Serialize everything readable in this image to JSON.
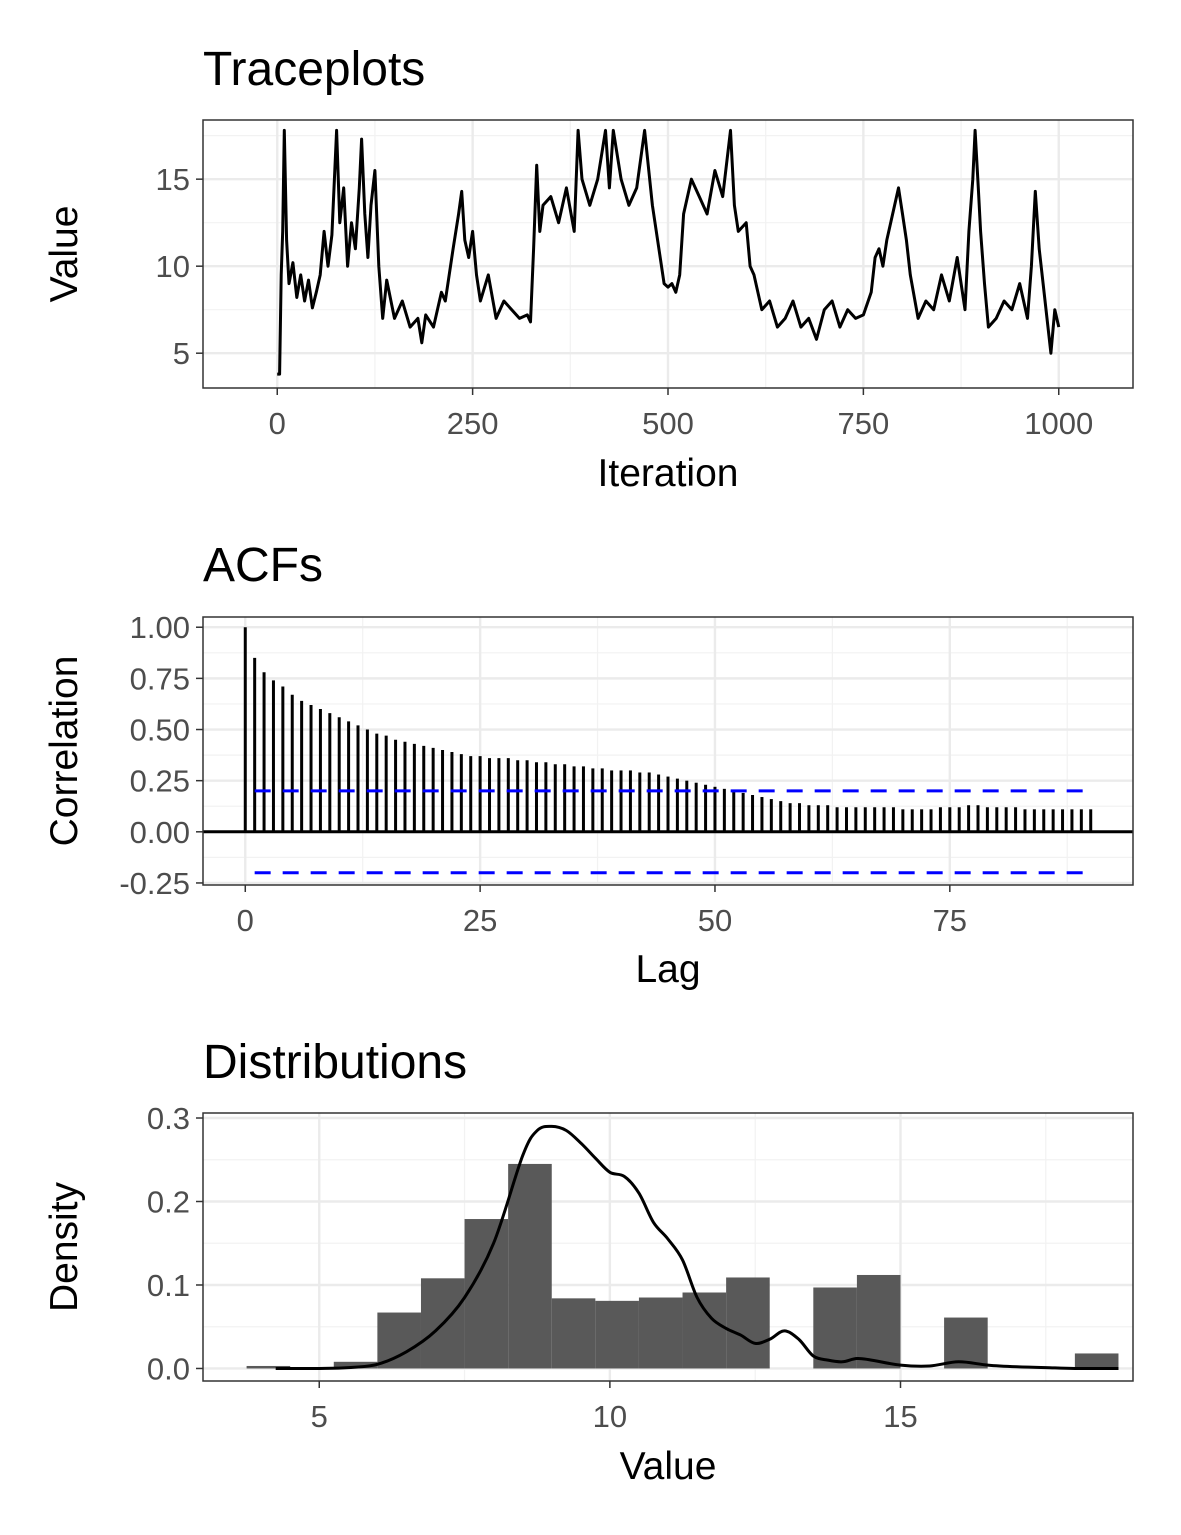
{
  "chart_data": [
    {
      "type": "line",
      "title": "Traceplots",
      "xlabel": "Iteration",
      "ylabel": "Value",
      "xlim": [
        -95,
        1095
      ],
      "ylim": [
        3.0,
        18.4
      ],
      "xticks": [
        0,
        250,
        500,
        750,
        1000
      ],
      "yticks": [
        5,
        10,
        15
      ],
      "grid": true,
      "line_color": "#000000",
      "anchors": [
        [
          0,
          3.8
        ],
        [
          3,
          3.8
        ],
        [
          5,
          9.5
        ],
        [
          7,
          12.0
        ],
        [
          9,
          17.8
        ],
        [
          12,
          11.5
        ],
        [
          15,
          9.0
        ],
        [
          20,
          10.2
        ],
        [
          25,
          8.2
        ],
        [
          30,
          9.5
        ],
        [
          35,
          8.0
        ],
        [
          40,
          9.2
        ],
        [
          45,
          7.6
        ],
        [
          50,
          8.5
        ],
        [
          55,
          9.5
        ],
        [
          60,
          12.0
        ],
        [
          65,
          10.0
        ],
        [
          70,
          11.8
        ],
        [
          76,
          17.8
        ],
        [
          80,
          12.5
        ],
        [
          85,
          14.5
        ],
        [
          90,
          10.0
        ],
        [
          95,
          12.5
        ],
        [
          100,
          11.0
        ],
        [
          105,
          14.5
        ],
        [
          108,
          17.3
        ],
        [
          112,
          13.0
        ],
        [
          116,
          10.5
        ],
        [
          120,
          13.5
        ],
        [
          125,
          15.5
        ],
        [
          130,
          10.0
        ],
        [
          135,
          7.0
        ],
        [
          140,
          9.2
        ],
        [
          150,
          7.0
        ],
        [
          160,
          8.0
        ],
        [
          170,
          6.5
        ],
        [
          180,
          7.0
        ],
        [
          185,
          5.6
        ],
        [
          190,
          7.2
        ],
        [
          200,
          6.5
        ],
        [
          210,
          8.5
        ],
        [
          215,
          8.0
        ],
        [
          220,
          9.5
        ],
        [
          225,
          11.0
        ],
        [
          232,
          13.0
        ],
        [
          236,
          14.3
        ],
        [
          240,
          11.5
        ],
        [
          245,
          10.5
        ],
        [
          250,
          12.0
        ],
        [
          255,
          9.5
        ],
        [
          260,
          8.0
        ],
        [
          270,
          9.5
        ],
        [
          280,
          7.0
        ],
        [
          290,
          8.0
        ],
        [
          300,
          7.5
        ],
        [
          310,
          7.0
        ],
        [
          320,
          7.2
        ],
        [
          324,
          6.8
        ],
        [
          328,
          11.0
        ],
        [
          332,
          15.8
        ],
        [
          336,
          12.0
        ],
        [
          340,
          13.5
        ],
        [
          350,
          14.0
        ],
        [
          360,
          12.5
        ],
        [
          370,
          14.5
        ],
        [
          380,
          12.0
        ],
        [
          385,
          17.8
        ],
        [
          390,
          15.0
        ],
        [
          400,
          13.5
        ],
        [
          410,
          15.0
        ],
        [
          420,
          17.8
        ],
        [
          425,
          14.5
        ],
        [
          430,
          17.8
        ],
        [
          440,
          15.0
        ],
        [
          450,
          13.5
        ],
        [
          460,
          14.5
        ],
        [
          470,
          17.8
        ],
        [
          480,
          13.5
        ],
        [
          490,
          10.5
        ],
        [
          495,
          9.0
        ],
        [
          500,
          8.8
        ],
        [
          505,
          9.0
        ],
        [
          510,
          8.5
        ],
        [
          515,
          9.5
        ],
        [
          520,
          13.0
        ],
        [
          530,
          15.0
        ],
        [
          540,
          14.0
        ],
        [
          550,
          13.0
        ],
        [
          560,
          15.5
        ],
        [
          570,
          14.0
        ],
        [
          580,
          17.8
        ],
        [
          585,
          13.5
        ],
        [
          590,
          12.0
        ],
        [
          600,
          12.5
        ],
        [
          605,
          10.0
        ],
        [
          610,
          9.5
        ],
        [
          620,
          7.5
        ],
        [
          630,
          8.0
        ],
        [
          640,
          6.5
        ],
        [
          650,
          7.0
        ],
        [
          660,
          8.0
        ],
        [
          670,
          6.5
        ],
        [
          680,
          7.0
        ],
        [
          690,
          5.8
        ],
        [
          700,
          7.5
        ],
        [
          710,
          8.0
        ],
        [
          720,
          6.5
        ],
        [
          730,
          7.5
        ],
        [
          740,
          7.0
        ],
        [
          750,
          7.2
        ],
        [
          760,
          8.5
        ],
        [
          765,
          10.5
        ],
        [
          770,
          11.0
        ],
        [
          775,
          10.0
        ],
        [
          780,
          11.5
        ],
        [
          790,
          13.5
        ],
        [
          795,
          14.5
        ],
        [
          800,
          13.0
        ],
        [
          805,
          11.5
        ],
        [
          810,
          9.5
        ],
        [
          820,
          7.0
        ],
        [
          830,
          8.0
        ],
        [
          840,
          7.5
        ],
        [
          850,
          9.5
        ],
        [
          860,
          8.0
        ],
        [
          870,
          10.5
        ],
        [
          875,
          9.0
        ],
        [
          880,
          7.5
        ],
        [
          885,
          12.0
        ],
        [
          890,
          15.0
        ],
        [
          893,
          17.8
        ],
        [
          897,
          14.5
        ],
        [
          900,
          12.0
        ],
        [
          905,
          9.0
        ],
        [
          910,
          6.5
        ],
        [
          920,
          7.0
        ],
        [
          930,
          8.0
        ],
        [
          940,
          7.5
        ],
        [
          950,
          9.0
        ],
        [
          960,
          7.0
        ],
        [
          965,
          10.0
        ],
        [
          970,
          14.3
        ],
        [
          975,
          11.0
        ],
        [
          980,
          9.0
        ],
        [
          985,
          7.0
        ],
        [
          990,
          5.0
        ],
        [
          995,
          7.5
        ],
        [
          1000,
          6.5
        ]
      ]
    },
    {
      "type": "bar",
      "title": "ACFs",
      "xlabel": "Lag",
      "ylabel": "Correlation",
      "xlim": [
        -4.5,
        94.5
      ],
      "ylim": [
        -0.26,
        1.05
      ],
      "xticks": [
        0,
        25,
        50,
        75
      ],
      "yticks": [
        -0.25,
        0.0,
        0.25,
        0.5,
        0.75,
        1.0
      ],
      "ytick_labels": [
        "-0.25",
        "0.00",
        "0.25",
        "0.50",
        "0.75",
        "1.00"
      ],
      "grid": true,
      "bar_color": "#000000",
      "ci": 0.2,
      "ci_color": "#0000ff",
      "lags": [
        0,
        1,
        2,
        3,
        4,
        5,
        6,
        7,
        8,
        9,
        10,
        11,
        12,
        13,
        14,
        15,
        16,
        17,
        18,
        19,
        20,
        21,
        22,
        23,
        24,
        25,
        26,
        27,
        28,
        29,
        30,
        31,
        32,
        33,
        34,
        35,
        36,
        37,
        38,
        39,
        40,
        41,
        42,
        43,
        44,
        45,
        46,
        47,
        48,
        49,
        50,
        51,
        52,
        53,
        54,
        55,
        56,
        57,
        58,
        59,
        60,
        61,
        62,
        63,
        64,
        65,
        66,
        67,
        68,
        69,
        70,
        71,
        72,
        73,
        74,
        75,
        76,
        77,
        78,
        79,
        80,
        81,
        82,
        83,
        84,
        85,
        86,
        87,
        88,
        89,
        90
      ],
      "values": [
        1.0,
        0.85,
        0.78,
        0.74,
        0.71,
        0.67,
        0.64,
        0.62,
        0.6,
        0.58,
        0.56,
        0.54,
        0.52,
        0.5,
        0.48,
        0.47,
        0.45,
        0.44,
        0.43,
        0.42,
        0.41,
        0.4,
        0.39,
        0.38,
        0.37,
        0.37,
        0.36,
        0.36,
        0.36,
        0.35,
        0.35,
        0.34,
        0.34,
        0.33,
        0.33,
        0.32,
        0.32,
        0.31,
        0.31,
        0.3,
        0.3,
        0.3,
        0.29,
        0.29,
        0.28,
        0.27,
        0.26,
        0.25,
        0.24,
        0.23,
        0.22,
        0.21,
        0.2,
        0.19,
        0.18,
        0.17,
        0.16,
        0.15,
        0.14,
        0.14,
        0.13,
        0.13,
        0.13,
        0.12,
        0.12,
        0.12,
        0.12,
        0.12,
        0.12,
        0.12,
        0.11,
        0.11,
        0.11,
        0.11,
        0.12,
        0.12,
        0.12,
        0.13,
        0.13,
        0.12,
        0.12,
        0.12,
        0.12,
        0.11,
        0.11,
        0.11,
        0.11,
        0.11,
        0.11,
        0.11,
        0.11
      ]
    },
    {
      "type": "bar",
      "title": "Distributions",
      "xlabel": "Value",
      "ylabel": "Density",
      "xlim": [
        3.0,
        19.0
      ],
      "ylim": [
        -0.015,
        0.306
      ],
      "xticks": [
        5,
        10,
        15
      ],
      "yticks": [
        0.0,
        0.1,
        0.2,
        0.3
      ],
      "ytick_labels": [
        "0.0",
        "0.1",
        "0.2",
        "0.3"
      ],
      "grid": true,
      "bar_color": "#595959",
      "bin_width": 0.75,
      "bin_left": [
        3.75,
        4.5,
        5.25,
        6.0,
        6.75,
        7.5,
        8.25,
        9.0,
        9.75,
        10.5,
        11.25,
        12.0,
        12.75,
        13.5,
        14.25,
        15.0,
        15.75,
        16.5,
        17.25,
        18.0
      ],
      "hist": [
        0.003,
        0.001,
        0.008,
        0.067,
        0.108,
        0.179,
        0.245,
        0.084,
        0.081,
        0.085,
        0.091,
        0.109,
        0.0,
        0.097,
        0.112,
        0.0,
        0.061,
        0.0,
        0.0,
        0.018
      ],
      "density_color": "#000000",
      "density": [
        [
          4.25,
          0.0
        ],
        [
          5.0,
          0.0
        ],
        [
          5.5,
          0.001
        ],
        [
          6.0,
          0.005
        ],
        [
          6.5,
          0.02
        ],
        [
          7.0,
          0.045
        ],
        [
          7.5,
          0.085
        ],
        [
          8.0,
          0.15
        ],
        [
          8.5,
          0.255
        ],
        [
          8.75,
          0.285
        ],
        [
          9.0,
          0.29
        ],
        [
          9.25,
          0.285
        ],
        [
          9.5,
          0.27
        ],
        [
          9.75,
          0.252
        ],
        [
          10.0,
          0.235
        ],
        [
          10.25,
          0.23
        ],
        [
          10.5,
          0.21
        ],
        [
          10.75,
          0.175
        ],
        [
          11.0,
          0.155
        ],
        [
          11.25,
          0.13
        ],
        [
          11.5,
          0.085
        ],
        [
          11.75,
          0.06
        ],
        [
          12.0,
          0.048
        ],
        [
          12.25,
          0.04
        ],
        [
          12.5,
          0.03
        ],
        [
          12.75,
          0.035
        ],
        [
          13.0,
          0.045
        ],
        [
          13.25,
          0.035
        ],
        [
          13.5,
          0.015
        ],
        [
          13.75,
          0.01
        ],
        [
          14.0,
          0.008
        ],
        [
          14.25,
          0.012
        ],
        [
          14.5,
          0.01
        ],
        [
          15.0,
          0.004
        ],
        [
          15.5,
          0.003
        ],
        [
          16.0,
          0.008
        ],
        [
          16.5,
          0.004
        ],
        [
          17.0,
          0.002
        ],
        [
          17.5,
          0.001
        ],
        [
          18.0,
          0.0
        ],
        [
          18.75,
          0.0
        ]
      ]
    }
  ]
}
